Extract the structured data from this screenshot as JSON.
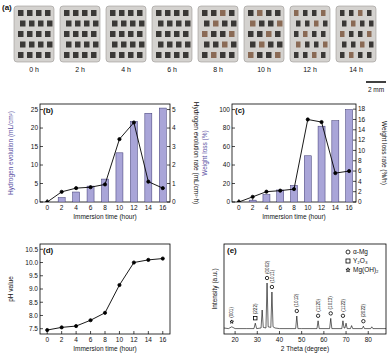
{
  "panel_a": {
    "panel_label": "(a)",
    "times": [
      "0 h",
      "2 h",
      "4 h",
      "6 h",
      "8 h",
      "10 h",
      "12 h",
      "14 h"
    ],
    "scale_bar": "2 mm"
  },
  "chart_data": [
    {
      "panel_label": "(b)",
      "type": "bar",
      "x": [
        0,
        2,
        4,
        6,
        8,
        10,
        12,
        14,
        16
      ],
      "xlim": [
        -1,
        17
      ],
      "xticks": [
        0,
        2,
        4,
        6,
        8,
        10,
        12,
        14,
        16
      ],
      "x_label": "Immersion time (hour)",
      "y_label": "Hydrogen evolution (mL/cm²)",
      "ylim": [
        0,
        26.5
      ],
      "yticks": [
        0,
        5,
        10,
        15,
        20,
        25
      ],
      "y2_label": "Hydrogen evolution rate (mL/cm²·h)",
      "y2lim": [
        0,
        5.3
      ],
      "y2ticks": [
        0,
        1,
        2,
        3,
        4,
        5
      ],
      "series": [
        {
          "type": "bar",
          "color": "#a9a5d8",
          "values": [
            0,
            1.2,
            2.7,
            4.3,
            6.2,
            13.3,
            21.8,
            24,
            25.4
          ]
        },
        {
          "type": "line",
          "axis": "y2",
          "marker": "circle",
          "color": "#000000",
          "values": [
            0,
            0.55,
            0.75,
            0.8,
            0.95,
            3.4,
            4.3,
            1.1,
            0.75
          ]
        }
      ]
    },
    {
      "panel_label": "(c)",
      "type": "bar",
      "x": [
        0,
        2,
        4,
        6,
        8,
        10,
        12,
        14,
        16
      ],
      "xlim": [
        -1,
        17
      ],
      "xticks": [
        0,
        2,
        4,
        6,
        8,
        10,
        12,
        14,
        16
      ],
      "x_label": "Immersion time (hour)",
      "y_label": "Weight loss (%)",
      "ylim": [
        0,
        106
      ],
      "yticks": [
        0,
        20,
        40,
        60,
        80,
        100
      ],
      "y2_label": "Weight loss rate (%/h)",
      "y2lim": [
        0,
        19
      ],
      "y2ticks": [
        0,
        2,
        4,
        6,
        8,
        10,
        12,
        14,
        16,
        18
      ],
      "series": [
        {
          "type": "bar",
          "color": "#a9a5d8",
          "values": [
            0,
            2,
            8,
            13,
            18,
            50,
            82,
            88,
            100
          ]
        },
        {
          "type": "line",
          "axis": "y2",
          "marker": "circle",
          "color": "#000000",
          "values": [
            0,
            1,
            2,
            2.2,
            2.5,
            16,
            15.5,
            5.6,
            6
          ]
        }
      ]
    },
    {
      "panel_label": "(d)",
      "type": "line",
      "x": [
        0,
        2,
        4,
        6,
        8,
        10,
        12,
        14,
        16
      ],
      "xlim": [
        -1,
        17
      ],
      "xticks": [
        0,
        2,
        4,
        6,
        8,
        10,
        12,
        14,
        16
      ],
      "x_label": "Immersion time (hour)",
      "y_label": "pH value",
      "ylim": [
        7.3,
        10.7
      ],
      "yticks": [
        7.5,
        {
          "value": 8,
          "label": "8.0"
        },
        8.5,
        {
          "value": 9,
          "label": "9.0"
        },
        9.5,
        {
          "value": 10,
          "label": "10.0"
        },
        10.5
      ],
      "series": [
        {
          "type": "line",
          "marker": "circle",
          "color": "#000000",
          "values": [
            7.45,
            7.55,
            7.6,
            7.82,
            8.1,
            9.15,
            10,
            10.1,
            10.15
          ]
        }
      ]
    },
    {
      "panel_label": "(e)",
      "type": "line",
      "tick_labels": "x",
      "x": [
        15,
        17,
        18.5,
        20,
        25,
        28.5,
        29.1,
        29.7,
        31.7,
        32.2,
        32.7,
        33.9,
        34.4,
        34.9,
        36.1,
        36.6,
        37.1,
        38,
        40,
        47.3,
        47.8,
        48.3,
        50,
        56.9,
        57.4,
        57.9,
        62.6,
        63.1,
        63.6,
        68.1,
        68.6,
        69.1,
        69.5,
        70,
        70.5,
        72,
        72.5,
        73,
        77.3,
        77.8,
        78.3,
        81.1,
        81.6,
        82.1,
        88
      ],
      "xlim": [
        15,
        88
      ],
      "xticks": [
        20,
        30,
        40,
        50,
        60,
        70,
        80
      ],
      "x_label": "2 Theta (degree)",
      "y_label": "Intensity (a.u.)",
      "ylim": [
        0,
        150
      ],
      "series": [
        {
          "type": "line",
          "color": "#000000",
          "values": [
            10,
            9,
            12,
            9,
            9,
            9,
            18,
            9,
            10,
            40,
            11,
            10,
            85,
            12,
            11,
            70,
            12,
            10,
            9,
            9,
            30,
            9,
            9,
            9,
            22,
            9,
            9,
            26,
            9,
            9,
            22,
            10,
            10,
            18,
            9,
            9,
            14,
            9,
            9,
            13,
            9,
            9,
            12,
            9,
            9
          ]
        }
      ],
      "phases": [
        {
          "name": "α-Mg",
          "marker": "circle"
        },
        {
          "name": "Y₂O₃",
          "marker": "square"
        },
        {
          "name": "Mg(OH)₂",
          "marker": "star"
        }
      ],
      "peaks": [
        {
          "x": 18.5,
          "y": 12,
          "marker": "star",
          "label": "(001)"
        },
        {
          "x": 29.1,
          "y": 18,
          "marker": "square",
          "label": "(222)"
        },
        {
          "x": 34.4,
          "y": 85,
          "marker": "circle",
          "label": "(0002)"
        },
        {
          "x": 36.6,
          "y": 70,
          "marker": "circle",
          "label": "(101̄1)"
        },
        {
          "x": 47.8,
          "y": 30,
          "marker": "circle",
          "label": "(101̄2)"
        },
        {
          "x": 57.4,
          "y": 22,
          "marker": "circle",
          "label": "(112̄0)"
        },
        {
          "x": 63.1,
          "y": 26,
          "marker": "circle",
          "label": "(101̄3)"
        },
        {
          "x": 68.6,
          "y": 22,
          "marker": "circle",
          "label": "(112̄2)"
        },
        {
          "x": 77.8,
          "y": 13,
          "marker": "circle",
          "label": "(202̄2)"
        }
      ]
    }
  ]
}
